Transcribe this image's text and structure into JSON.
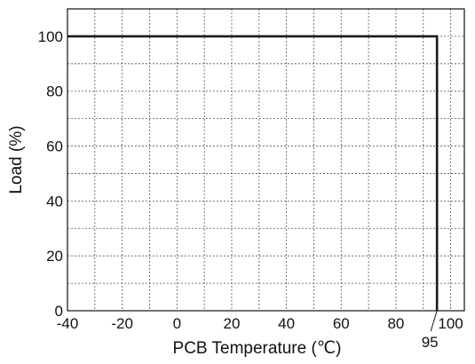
{
  "chart_data": {
    "type": "line",
    "xlabel": "PCB Temperature (℃)",
    "ylabel": "Load (%)",
    "xlim": [
      -40,
      105
    ],
    "ylim": [
      0,
      110
    ],
    "x_ticks": [
      -40,
      -20,
      0,
      20,
      40,
      60,
      80,
      100
    ],
    "x_tick_labels": [
      "-40",
      "-20",
      "0",
      "20",
      "40",
      "60",
      "80",
      "100"
    ],
    "y_ticks": [
      0,
      20,
      40,
      60,
      80,
      100
    ],
    "y_tick_labels": [
      "0",
      "20",
      "40",
      "60",
      "80",
      "100"
    ],
    "x_grid_step": 10,
    "y_grid_step": 10,
    "grid": true,
    "series": [
      {
        "x": [
          -40,
          95,
          95
        ],
        "y": [
          100,
          100,
          0
        ],
        "color": "#1a1a1a"
      }
    ],
    "annotations": [
      {
        "text": "95",
        "x": 95,
        "y": 0
      }
    ]
  }
}
